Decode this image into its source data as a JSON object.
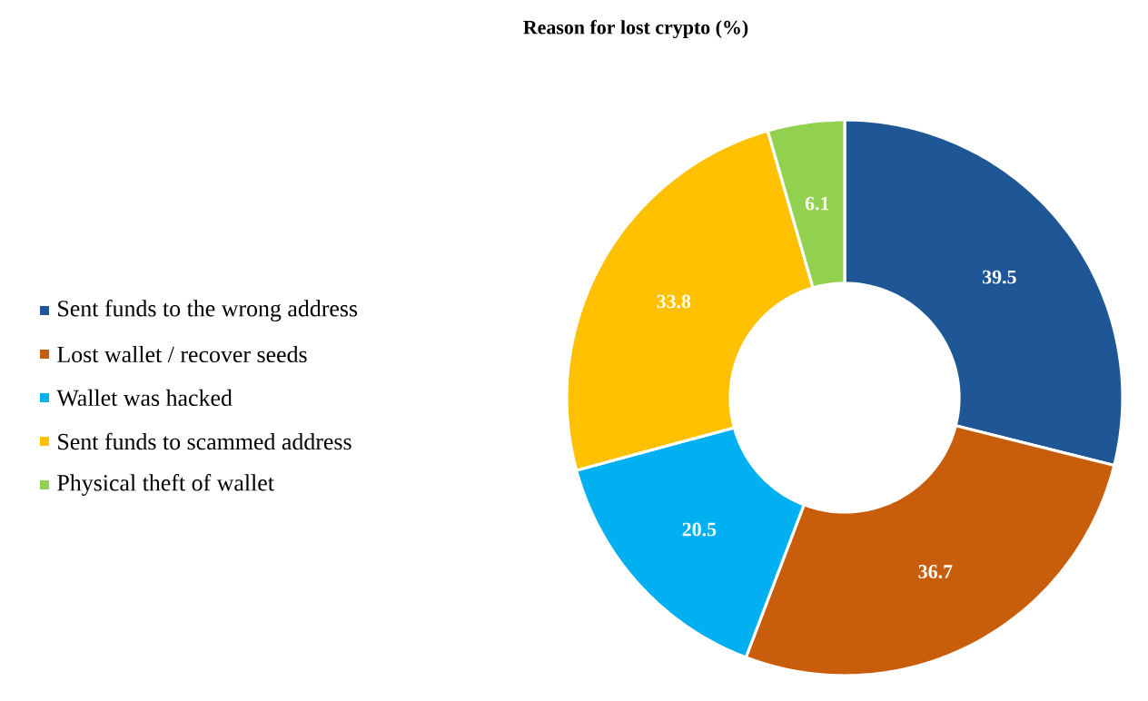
{
  "chart_data": {
    "type": "donut",
    "title": "Reason for lost crypto (%)",
    "categories": [
      "Sent funds to the wrong address",
      "Lost wallet / recover seeds",
      "Wallet was hacked",
      "Sent funds to scammed address",
      "Physical theft of wallet"
    ],
    "values": [
      39.5,
      36.7,
      20.5,
      33.8,
      6.1
    ],
    "colors": [
      "#1f5796",
      "#c85e0c",
      "#00b0f0",
      "#ffc000",
      "#92d050"
    ],
    "data_labels": true,
    "legend": "left"
  }
}
